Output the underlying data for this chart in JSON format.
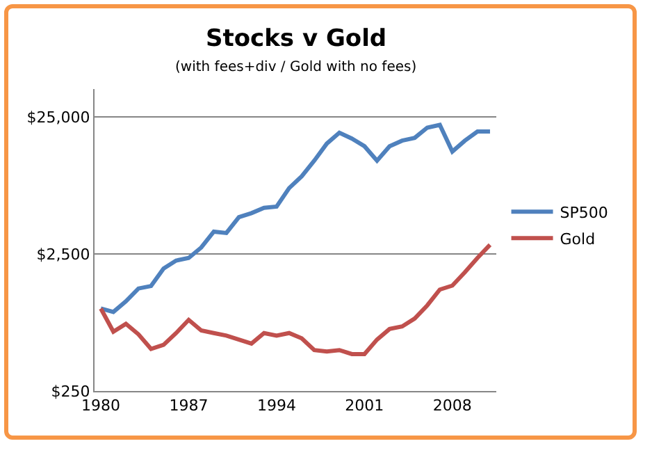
{
  "chart_data": {
    "type": "line",
    "title": "Stocks v Gold",
    "subtitle": "(with fees+div / Gold with no fees)",
    "x": [
      1980,
      1981,
      1982,
      1983,
      1984,
      1985,
      1986,
      1987,
      1988,
      1989,
      1990,
      1991,
      1992,
      1993,
      1994,
      1995,
      1996,
      1997,
      1998,
      1999,
      2000,
      2001,
      2002,
      2003,
      2004,
      2005,
      2006,
      2007,
      2008,
      2009,
      2010,
      2011
    ],
    "series": [
      {
        "name": "SP500",
        "color": "#4f81bd",
        "values": [
          1000,
          944,
          1130,
          1400,
          1460,
          1960,
          2240,
          2340,
          2790,
          3640,
          3560,
          4650,
          4970,
          5430,
          5550,
          7570,
          9230,
          12000,
          16000,
          19200,
          17400,
          15300,
          12000,
          15300,
          16800,
          17600,
          20900,
          21900,
          14000,
          16800,
          19600,
          19600
        ]
      },
      {
        "name": "Gold",
        "color": "#c0504d",
        "values": [
          1000,
          677,
          774,
          648,
          507,
          543,
          662,
          826,
          692,
          662,
          634,
          593,
          555,
          662,
          634,
          662,
          606,
          497,
          486,
          497,
          465,
          465,
          593,
          709,
          740,
          845,
          1054,
          1375,
          1470,
          1840,
          2340,
          2920
        ]
      }
    ],
    "log": "y",
    "xlim": [
      1979.5,
      2011.5
    ],
    "xticks": [
      1980,
      1987,
      1994,
      2001,
      2008
    ],
    "ylim": [
      250,
      40000
    ],
    "yticks": [
      {
        "value": 250,
        "label": "$250"
      },
      {
        "value": 2500,
        "label": "$2,500"
      },
      {
        "value": 25000,
        "label": "$25,000"
      }
    ],
    "grid": "y",
    "legend": "right",
    "marker": "none",
    "line_style": "solid"
  }
}
